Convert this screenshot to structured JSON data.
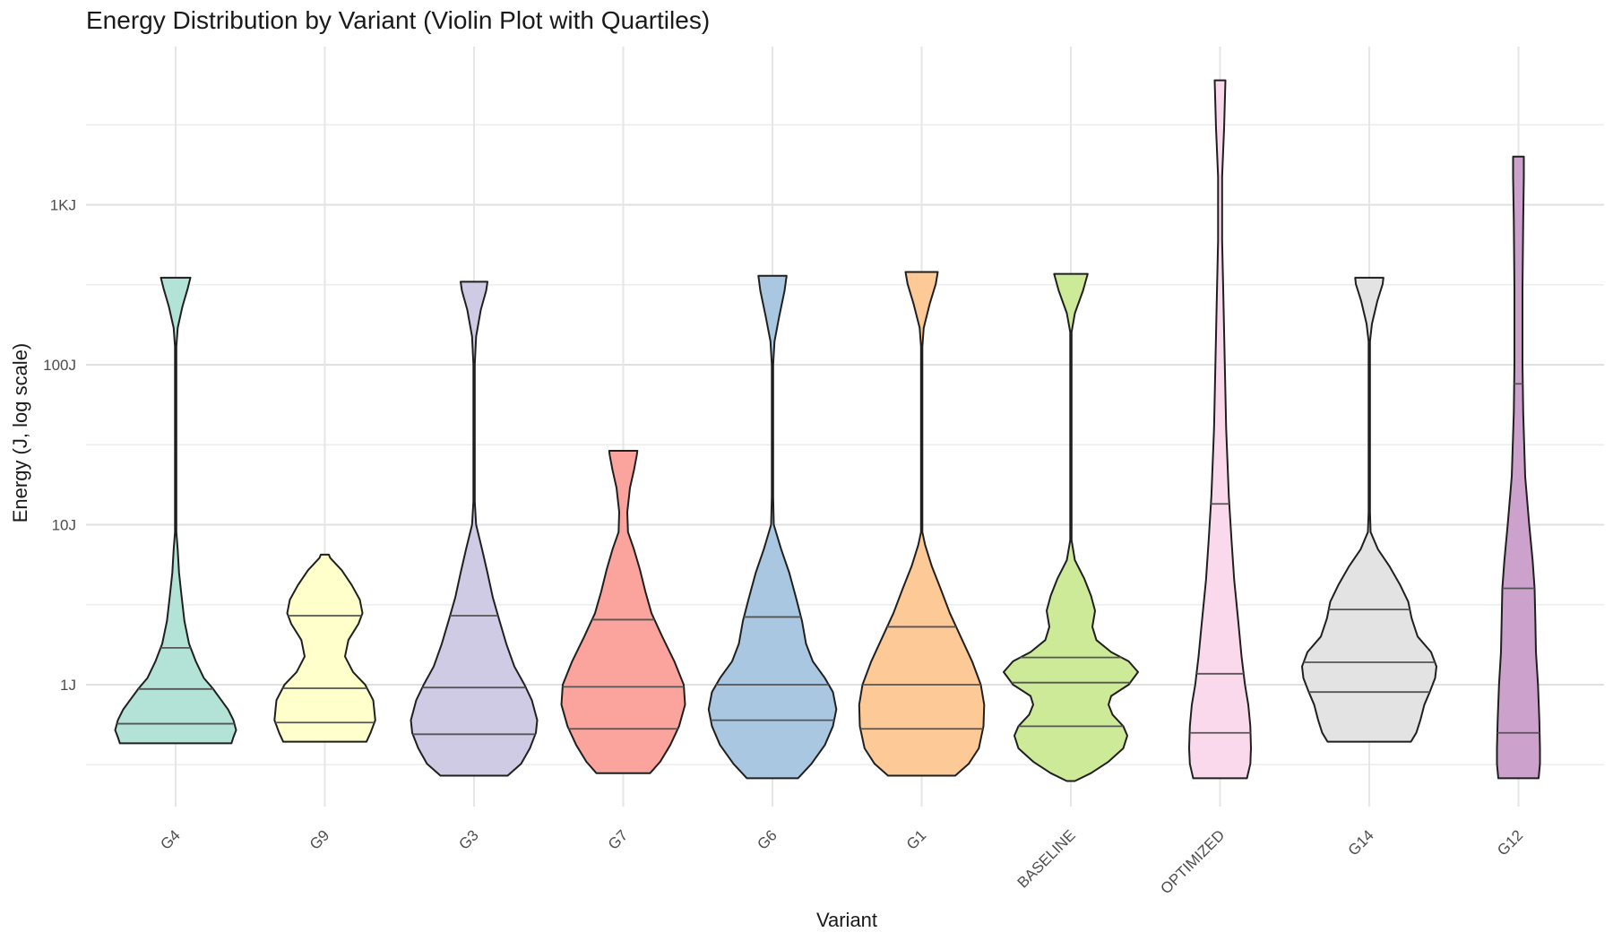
{
  "chart_data": {
    "type": "violin",
    "title": "Energy Distribution by Variant (Violin Plot with Quartiles)",
    "xlabel": "Variant",
    "ylabel": "Energy (J, log scale)",
    "y_scale": "log10",
    "ylim": [
      0.16,
      35000
    ],
    "y_ticks": [
      {
        "value": 1,
        "label": "1J"
      },
      {
        "value": 10,
        "label": "10J"
      },
      {
        "value": 100,
        "label": "100J"
      },
      {
        "value": 1000,
        "label": "1KJ"
      }
    ],
    "grid": true,
    "legend": "none",
    "categories": [
      "G4",
      "G9",
      "G3",
      "G7",
      "G6",
      "G1",
      "BASELINE",
      "OPTIMIZED",
      "G14",
      "G12"
    ],
    "series": [
      {
        "category": "G4",
        "color": "#b3e2d6",
        "min": 0.43,
        "max": 350,
        "quartiles": [
          0.57,
          0.94,
          1.7
        ],
        "profile": [
          [
            0.43,
            0.83
          ],
          [
            0.47,
            0.86
          ],
          [
            0.52,
            0.9
          ],
          [
            0.6,
            0.86
          ],
          [
            0.7,
            0.78
          ],
          [
            0.8,
            0.68
          ],
          [
            0.95,
            0.55
          ],
          [
            1.1,
            0.42
          ],
          [
            1.4,
            0.3
          ],
          [
            1.8,
            0.2
          ],
          [
            2.5,
            0.13
          ],
          [
            3.5,
            0.09
          ],
          [
            5,
            0.05
          ],
          [
            7,
            0.03
          ],
          [
            9,
            0.01
          ],
          [
            30,
            0.01
          ],
          [
            130,
            0.01
          ],
          [
            170,
            0.03
          ],
          [
            230,
            0.1
          ],
          [
            300,
            0.18
          ],
          [
            350,
            0.22
          ]
        ]
      },
      {
        "category": "G9",
        "color": "#ffffcc",
        "min": 0.44,
        "max": 6.5,
        "quartiles": [
          0.58,
          0.95,
          2.7
        ],
        "profile": [
          [
            0.44,
            0.62
          ],
          [
            0.5,
            0.68
          ],
          [
            0.6,
            0.75
          ],
          [
            0.8,
            0.72
          ],
          [
            1.0,
            0.6
          ],
          [
            1.2,
            0.42
          ],
          [
            1.5,
            0.3
          ],
          [
            1.9,
            0.35
          ],
          [
            2.4,
            0.5
          ],
          [
            2.8,
            0.56
          ],
          [
            3.4,
            0.52
          ],
          [
            4.2,
            0.4
          ],
          [
            5.2,
            0.25
          ],
          [
            6.2,
            0.08
          ],
          [
            6.5,
            0.06
          ]
        ]
      },
      {
        "category": "G3",
        "color": "#cfcbe5",
        "min": 0.27,
        "max": 330,
        "quartiles": [
          0.49,
          0.96,
          2.7
        ],
        "profile": [
          [
            0.27,
            0.5
          ],
          [
            0.32,
            0.7
          ],
          [
            0.4,
            0.83
          ],
          [
            0.5,
            0.92
          ],
          [
            0.6,
            0.94
          ],
          [
            0.8,
            0.86
          ],
          [
            1.0,
            0.75
          ],
          [
            1.3,
            0.6
          ],
          [
            1.8,
            0.48
          ],
          [
            2.5,
            0.38
          ],
          [
            3.5,
            0.28
          ],
          [
            5,
            0.2
          ],
          [
            7,
            0.12
          ],
          [
            10,
            0.03
          ],
          [
            14,
            0.01
          ],
          [
            100,
            0.01
          ],
          [
            150,
            0.03
          ],
          [
            220,
            0.1
          ],
          [
            290,
            0.18
          ],
          [
            330,
            0.2
          ]
        ]
      },
      {
        "category": "G7",
        "color": "#fba49d",
        "min": 0.28,
        "max": 29,
        "quartiles": [
          0.53,
          0.97,
          2.55
        ],
        "profile": [
          [
            0.28,
            0.4
          ],
          [
            0.33,
            0.55
          ],
          [
            0.42,
            0.7
          ],
          [
            0.55,
            0.83
          ],
          [
            0.75,
            0.92
          ],
          [
            1.0,
            0.9
          ],
          [
            1.4,
            0.76
          ],
          [
            2.0,
            0.58
          ],
          [
            2.8,
            0.42
          ],
          [
            3.8,
            0.33
          ],
          [
            5.2,
            0.25
          ],
          [
            7,
            0.16
          ],
          [
            9,
            0.07
          ],
          [
            12,
            0.06
          ],
          [
            17,
            0.1
          ],
          [
            22,
            0.16
          ],
          [
            27,
            0.2
          ],
          [
            29,
            0.21
          ]
        ]
      },
      {
        "category": "G6",
        "color": "#a9c7e0",
        "min": 0.26,
        "max": 360,
        "quartiles": [
          0.6,
          1.0,
          2.65
        ],
        "profile": [
          [
            0.26,
            0.38
          ],
          [
            0.32,
            0.58
          ],
          [
            0.42,
            0.78
          ],
          [
            0.55,
            0.9
          ],
          [
            0.7,
            0.95
          ],
          [
            0.9,
            0.9
          ],
          [
            1.1,
            0.78
          ],
          [
            1.4,
            0.6
          ],
          [
            1.8,
            0.5
          ],
          [
            2.5,
            0.44
          ],
          [
            3.5,
            0.35
          ],
          [
            5,
            0.25
          ],
          [
            7,
            0.13
          ],
          [
            10,
            0.02
          ],
          [
            15,
            0.01
          ],
          [
            100,
            0.01
          ],
          [
            140,
            0.03
          ],
          [
            200,
            0.1
          ],
          [
            290,
            0.18
          ],
          [
            360,
            0.21
          ]
        ]
      },
      {
        "category": "G1",
        "color": "#fdc997",
        "min": 0.27,
        "max": 380,
        "quartiles": [
          0.53,
          1.0,
          2.3
        ],
        "profile": [
          [
            0.27,
            0.5
          ],
          [
            0.32,
            0.7
          ],
          [
            0.4,
            0.85
          ],
          [
            0.55,
            0.92
          ],
          [
            0.75,
            0.93
          ],
          [
            1.0,
            0.88
          ],
          [
            1.4,
            0.75
          ],
          [
            2.0,
            0.58
          ],
          [
            2.8,
            0.42
          ],
          [
            4,
            0.28
          ],
          [
            5.5,
            0.15
          ],
          [
            7.5,
            0.05
          ],
          [
            9,
            0.01
          ],
          [
            15,
            0.01
          ],
          [
            130,
            0.01
          ],
          [
            170,
            0.03
          ],
          [
            240,
            0.12
          ],
          [
            320,
            0.21
          ],
          [
            380,
            0.24
          ]
        ]
      },
      {
        "category": "BASELINE",
        "color": "#cdea98",
        "min": 0.25,
        "max": 370,
        "quartiles": [
          0.55,
          1.03,
          1.48
        ],
        "profile": [
          [
            0.25,
            0.06
          ],
          [
            0.28,
            0.3
          ],
          [
            0.33,
            0.56
          ],
          [
            0.4,
            0.78
          ],
          [
            0.48,
            0.84
          ],
          [
            0.55,
            0.78
          ],
          [
            0.65,
            0.62
          ],
          [
            0.75,
            0.56
          ],
          [
            0.85,
            0.6
          ],
          [
            1.0,
            0.86
          ],
          [
            1.2,
            1.0
          ],
          [
            1.4,
            0.86
          ],
          [
            1.6,
            0.6
          ],
          [
            1.9,
            0.38
          ],
          [
            2.3,
            0.32
          ],
          [
            2.9,
            0.36
          ],
          [
            3.6,
            0.3
          ],
          [
            4.6,
            0.2
          ],
          [
            6,
            0.06
          ],
          [
            8,
            0.01
          ],
          [
            160,
            0.01
          ],
          [
            210,
            0.06
          ],
          [
            290,
            0.18
          ],
          [
            370,
            0.25
          ]
        ]
      },
      {
        "category": "OPTIMIZED",
        "color": "#fbd9ec",
        "min": 0.26,
        "max": 6000,
        "quartiles": [
          0.5,
          1.17,
          13.5
        ],
        "profile": [
          [
            0.26,
            0.4
          ],
          [
            0.32,
            0.45
          ],
          [
            0.4,
            0.46
          ],
          [
            0.55,
            0.45
          ],
          [
            0.75,
            0.42
          ],
          [
            1.0,
            0.37
          ],
          [
            1.5,
            0.32
          ],
          [
            2.5,
            0.27
          ],
          [
            4.5,
            0.21
          ],
          [
            8,
            0.17
          ],
          [
            15,
            0.13
          ],
          [
            40,
            0.09
          ],
          [
            100,
            0.07
          ],
          [
            250,
            0.05
          ],
          [
            600,
            0.03
          ],
          [
            1500,
            0.03
          ],
          [
            3000,
            0.06
          ],
          [
            6000,
            0.08
          ]
        ]
      },
      {
        "category": "G14",
        "color": "#e3e3e3",
        "min": 0.44,
        "max": 350,
        "quartiles": [
          0.9,
          1.38,
          2.95
        ],
        "profile": [
          [
            0.44,
            0.62
          ],
          [
            0.5,
            0.7
          ],
          [
            0.6,
            0.76
          ],
          [
            0.75,
            0.82
          ],
          [
            0.9,
            0.9
          ],
          [
            1.1,
            0.98
          ],
          [
            1.3,
            1.0
          ],
          [
            1.6,
            0.92
          ],
          [
            2.0,
            0.72
          ],
          [
            2.6,
            0.63
          ],
          [
            3.3,
            0.58
          ],
          [
            4.2,
            0.46
          ],
          [
            5.5,
            0.3
          ],
          [
            7,
            0.13
          ],
          [
            9,
            0.02
          ],
          [
            12,
            0.01
          ],
          [
            140,
            0.01
          ],
          [
            180,
            0.04
          ],
          [
            250,
            0.12
          ],
          [
            320,
            0.2
          ],
          [
            350,
            0.21
          ]
        ]
      },
      {
        "category": "G12",
        "color": "#cca2cc",
        "min": 0.26,
        "max": 2000,
        "quartiles": [
          0.5,
          4.0,
          76
        ],
        "profile": [
          [
            0.26,
            0.3
          ],
          [
            0.32,
            0.32
          ],
          [
            0.4,
            0.32
          ],
          [
            0.6,
            0.31
          ],
          [
            1.0,
            0.29
          ],
          [
            1.6,
            0.26
          ],
          [
            2.6,
            0.25
          ],
          [
            4,
            0.24
          ],
          [
            6,
            0.21
          ],
          [
            10,
            0.16
          ],
          [
            20,
            0.1
          ],
          [
            50,
            0.07
          ],
          [
            100,
            0.06
          ],
          [
            300,
            0.06
          ],
          [
            800,
            0.07
          ],
          [
            1500,
            0.08
          ],
          [
            2000,
            0.08
          ]
        ]
      }
    ]
  }
}
